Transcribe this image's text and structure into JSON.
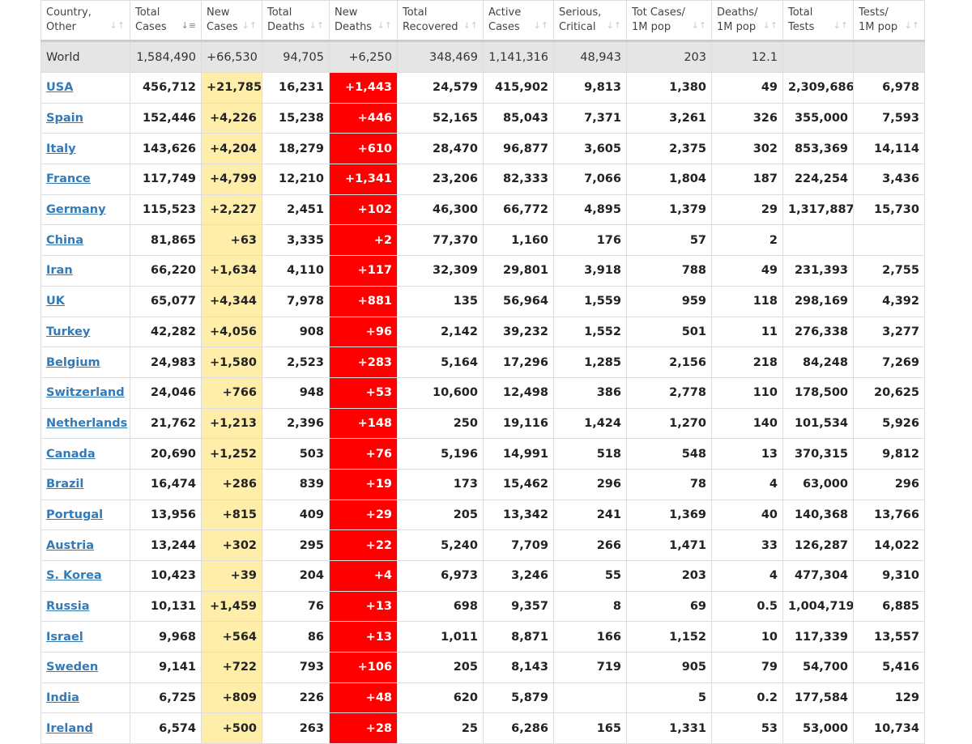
{
  "colors": {
    "new_cases_bg": "#ffeeaa",
    "new_deaths_bg": "#ff0000",
    "world_bg": "#e5e5e5",
    "link": "#337ab7"
  },
  "columns": [
    {
      "l1": "Country,",
      "l2": "Other",
      "sort_icon": "sort-icon"
    },
    {
      "l1": "Total",
      "l2": "Cases",
      "sort_icon": "sort-desc-icon"
    },
    {
      "l1": "New",
      "l2": "Cases",
      "sort_icon": "sort-icon"
    },
    {
      "l1": "Total",
      "l2": "Deaths",
      "sort_icon": "sort-icon"
    },
    {
      "l1": "New",
      "l2": "Deaths",
      "sort_icon": "sort-icon"
    },
    {
      "l1": "Total",
      "l2": "Recovered",
      "sort_icon": "sort-icon"
    },
    {
      "l1": "Active",
      "l2": "Cases",
      "sort_icon": "sort-icon"
    },
    {
      "l1": "Serious,",
      "l2": "Critical",
      "sort_icon": "sort-icon"
    },
    {
      "l1": "Tot Cases/",
      "l2": "1M pop",
      "sort_icon": "sort-icon"
    },
    {
      "l1": "Deaths/",
      "l2": "1M pop",
      "sort_icon": "sort-icon"
    },
    {
      "l1": "Total",
      "l2": "Tests",
      "sort_icon": "sort-icon"
    },
    {
      "l1": "Tests/",
      "l2": "1M pop",
      "sort_icon": "sort-icon"
    }
  ],
  "world": [
    "World",
    "1,584,490",
    "+66,530",
    "94,705",
    "+6,250",
    "348,469",
    "1,141,316",
    "48,943",
    "203",
    "12.1",
    "",
    ""
  ],
  "rows": [
    [
      "USA",
      "456,712",
      "+21,785",
      "16,231",
      "+1,443",
      "24,579",
      "415,902",
      "9,813",
      "1,380",
      "49",
      "2,309,686",
      "6,978"
    ],
    [
      "Spain",
      "152,446",
      "+4,226",
      "15,238",
      "+446",
      "52,165",
      "85,043",
      "7,371",
      "3,261",
      "326",
      "355,000",
      "7,593"
    ],
    [
      "Italy",
      "143,626",
      "+4,204",
      "18,279",
      "+610",
      "28,470",
      "96,877",
      "3,605",
      "2,375",
      "302",
      "853,369",
      "14,114"
    ],
    [
      "France",
      "117,749",
      "+4,799",
      "12,210",
      "+1,341",
      "23,206",
      "82,333",
      "7,066",
      "1,804",
      "187",
      "224,254",
      "3,436"
    ],
    [
      "Germany",
      "115,523",
      "+2,227",
      "2,451",
      "+102",
      "46,300",
      "66,772",
      "4,895",
      "1,379",
      "29",
      "1,317,887",
      "15,730"
    ],
    [
      "China",
      "81,865",
      "+63",
      "3,335",
      "+2",
      "77,370",
      "1,160",
      "176",
      "57",
      "2",
      "",
      ""
    ],
    [
      "Iran",
      "66,220",
      "+1,634",
      "4,110",
      "+117",
      "32,309",
      "29,801",
      "3,918",
      "788",
      "49",
      "231,393",
      "2,755"
    ],
    [
      "UK",
      "65,077",
      "+4,344",
      "7,978",
      "+881",
      "135",
      "56,964",
      "1,559",
      "959",
      "118",
      "298,169",
      "4,392"
    ],
    [
      "Turkey",
      "42,282",
      "+4,056",
      "908",
      "+96",
      "2,142",
      "39,232",
      "1,552",
      "501",
      "11",
      "276,338",
      "3,277"
    ],
    [
      "Belgium",
      "24,983",
      "+1,580",
      "2,523",
      "+283",
      "5,164",
      "17,296",
      "1,285",
      "2,156",
      "218",
      "84,248",
      "7,269"
    ],
    [
      "Switzerland",
      "24,046",
      "+766",
      "948",
      "+53",
      "10,600",
      "12,498",
      "386",
      "2,778",
      "110",
      "178,500",
      "20,625"
    ],
    [
      "Netherlands",
      "21,762",
      "+1,213",
      "2,396",
      "+148",
      "250",
      "19,116",
      "1,424",
      "1,270",
      "140",
      "101,534",
      "5,926"
    ],
    [
      "Canada",
      "20,690",
      "+1,252",
      "503",
      "+76",
      "5,196",
      "14,991",
      "518",
      "548",
      "13",
      "370,315",
      "9,812"
    ],
    [
      "Brazil",
      "16,474",
      "+286",
      "839",
      "+19",
      "173",
      "15,462",
      "296",
      "78",
      "4",
      "63,000",
      "296"
    ],
    [
      "Portugal",
      "13,956",
      "+815",
      "409",
      "+29",
      "205",
      "13,342",
      "241",
      "1,369",
      "40",
      "140,368",
      "13,766"
    ],
    [
      "Austria",
      "13,244",
      "+302",
      "295",
      "+22",
      "5,240",
      "7,709",
      "266",
      "1,471",
      "33",
      "126,287",
      "14,022"
    ],
    [
      "S. Korea",
      "10,423",
      "+39",
      "204",
      "+4",
      "6,973",
      "3,246",
      "55",
      "203",
      "4",
      "477,304",
      "9,310"
    ],
    [
      "Russia",
      "10,131",
      "+1,459",
      "76",
      "+13",
      "698",
      "9,357",
      "8",
      "69",
      "0.5",
      "1,004,719",
      "6,885"
    ],
    [
      "Israel",
      "9,968",
      "+564",
      "86",
      "+13",
      "1,011",
      "8,871",
      "166",
      "1,152",
      "10",
      "117,339",
      "13,557"
    ],
    [
      "Sweden",
      "9,141",
      "+722",
      "793",
      "+106",
      "205",
      "8,143",
      "719",
      "905",
      "79",
      "54,700",
      "5,416"
    ],
    [
      "India",
      "6,725",
      "+809",
      "226",
      "+48",
      "620",
      "5,879",
      "",
      "5",
      "0.2",
      "177,584",
      "129"
    ],
    [
      "Ireland",
      "6,574",
      "+500",
      "263",
      "+28",
      "25",
      "6,286",
      "165",
      "1,331",
      "53",
      "53,000",
      "10,734"
    ]
  ]
}
